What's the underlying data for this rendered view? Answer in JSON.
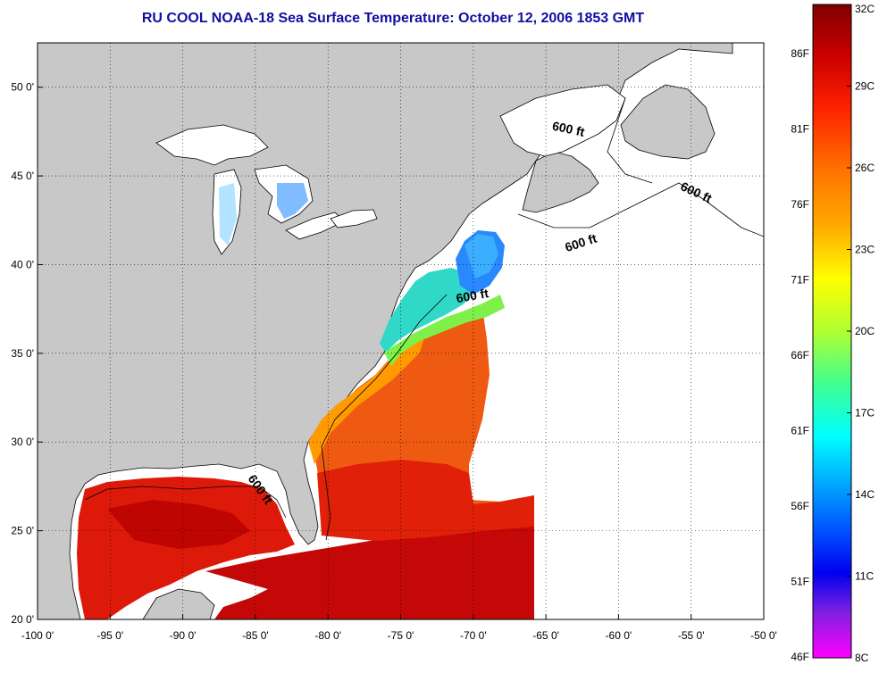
{
  "title": "RU COOL  NOAA-18  Sea Surface Temperature:  October 12, 2006 1853 GMT",
  "map": {
    "lon_range": [
      -100,
      -50
    ],
    "lat_range": [
      20,
      52.5
    ],
    "x_ticks": [
      "-100 0'",
      "-95 0'",
      "-90 0'",
      "-85 0'",
      "-80 0'",
      "-75 0'",
      "-70 0'",
      "-65 0'",
      "-60 0'",
      "-55 0'",
      "-50 0'"
    ],
    "y_ticks": [
      "50 0'",
      "45 0'",
      "40 0'",
      "35 0'",
      "30 0'",
      "25 0'",
      "20 0'"
    ],
    "land_color": "#c8c8c8",
    "no_data_color": "#ffffff",
    "grid": "dotted",
    "contour_labels": [
      {
        "text": "600 ft"
      },
      {
        "text": "600 ft"
      },
      {
        "text": "600 ft"
      },
      {
        "text": "600 ft"
      },
      {
        "text": "600 ft"
      }
    ]
  },
  "colorbar": {
    "orientation": "vertical",
    "left_labels_f": [
      "86F",
      "81F",
      "76F",
      "71F",
      "66F",
      "61F",
      "56F",
      "51F",
      "46F"
    ],
    "right_labels_c": [
      "32C",
      "29C",
      "26C",
      "23C",
      "20C",
      "17C",
      "14C",
      "11C",
      "8C"
    ],
    "colors": [
      "#800000",
      "#cc0000",
      "#ff2200",
      "#ff7700",
      "#ffaa00",
      "#ffff00",
      "#b0ff30",
      "#40ff90",
      "#00ffff",
      "#00a0ff",
      "#0040ff",
      "#0000ee",
      "#8020e0",
      "#ff00ff"
    ]
  }
}
